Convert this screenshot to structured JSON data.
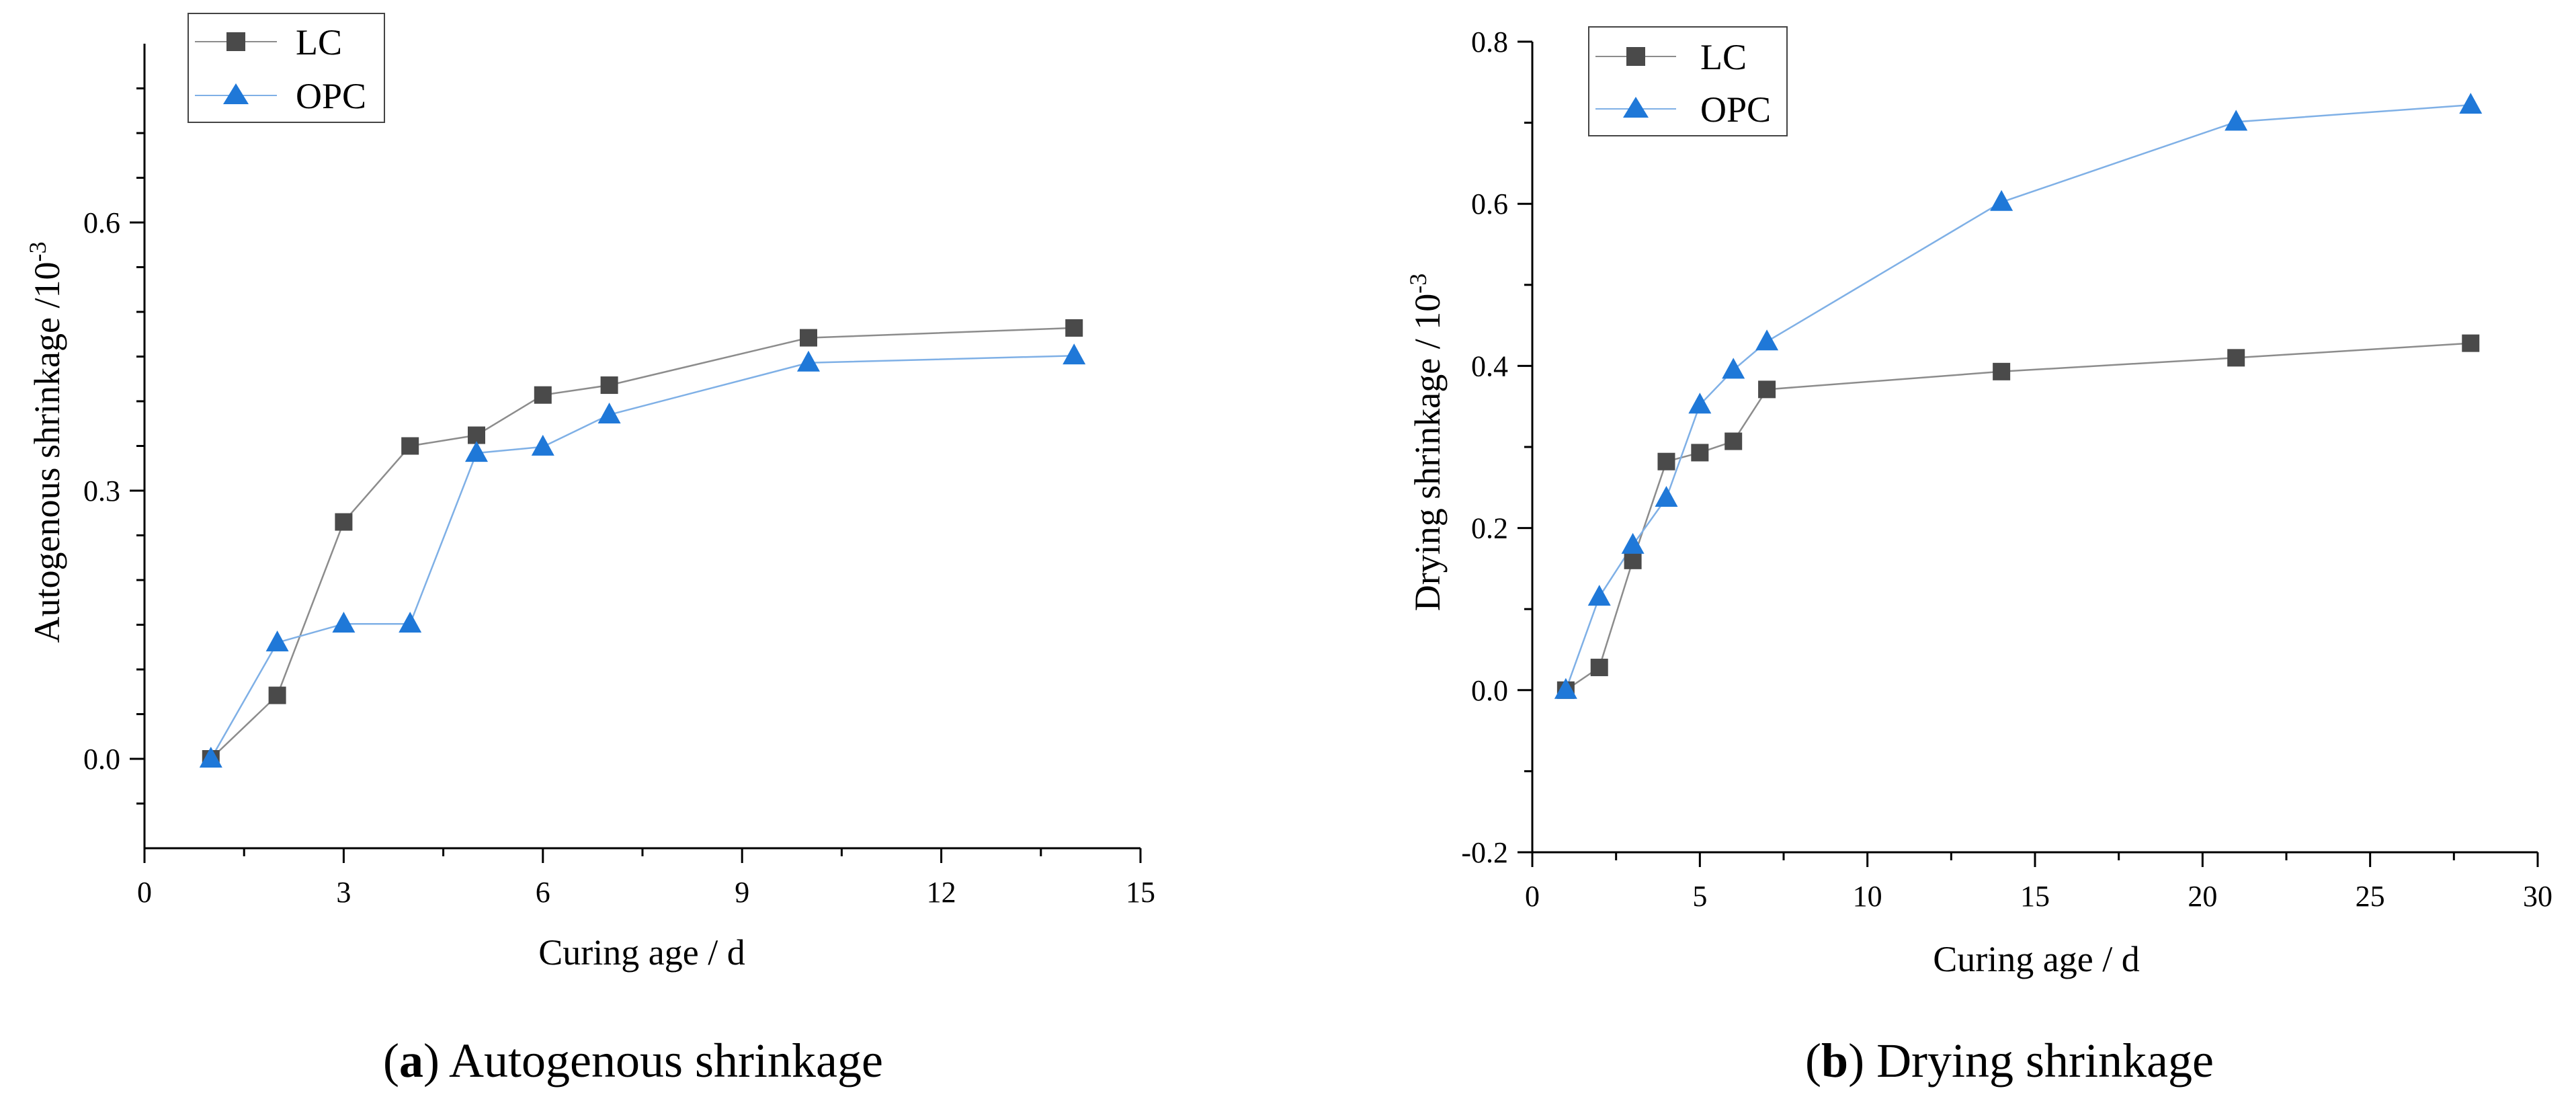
{
  "chart_data": [
    {
      "id": "a",
      "type": "line",
      "caption_letter": "a",
      "caption_text": "Autogenous shrinkage",
      "xlabel": "Curing age / d",
      "ylabel": "Autogenous shrinkage /10",
      "ylabel_exponent": "-3",
      "xlim": [
        0,
        15
      ],
      "ylim": [
        -0.1,
        0.8
      ],
      "xticks": [
        0,
        3,
        6,
        9,
        12,
        15
      ],
      "xtick_labels": [
        "0",
        "3",
        "6",
        "9",
        "12",
        "15"
      ],
      "xminor": [
        1.5,
        4.5,
        7.5,
        10.5,
        13.5
      ],
      "yticks": [
        0,
        0.3,
        0.6
      ],
      "ytick_labels": [
        "0.0",
        "0.3",
        "0.6"
      ],
      "yminor": [
        -0.05,
        0.05,
        0.1,
        0.15,
        0.2,
        0.25,
        0.35,
        0.4,
        0.45,
        0.5,
        0.55,
        0.65,
        0.7,
        0.75
      ],
      "legend_position": "top-left",
      "series": [
        {
          "name": "LC",
          "marker": "square",
          "marker_color": "#4a4a4a",
          "line_color": "#8c8c8c",
          "x": [
            1,
            2,
            3,
            4,
            5,
            6,
            7,
            10,
            14
          ],
          "y": [
            0.0,
            0.071,
            0.265,
            0.35,
            0.362,
            0.407,
            0.418,
            0.471,
            0.482
          ]
        },
        {
          "name": "OPC",
          "marker": "triangle",
          "marker_color": "#1f78d8",
          "line_color": "#7fb0e6",
          "x": [
            1,
            2,
            3,
            4,
            5,
            6,
            7,
            10,
            14
          ],
          "y": [
            0.0,
            0.13,
            0.151,
            0.151,
            0.342,
            0.349,
            0.385,
            0.443,
            0.451
          ]
        }
      ]
    },
    {
      "id": "b",
      "type": "line",
      "caption_letter": "b",
      "caption_text": "Drying shrinkage",
      "xlabel": "Curing age / d",
      "ylabel": "Drying shrinkage / 10",
      "ylabel_exponent": "-3",
      "xlim": [
        0,
        30
      ],
      "ylim": [
        -0.2,
        0.8
      ],
      "xticks": [
        0,
        5,
        10,
        15,
        20,
        25,
        30
      ],
      "xtick_labels": [
        "0",
        "5",
        "10",
        "15",
        "20",
        "25",
        "30"
      ],
      "xminor": [
        2.5,
        7.5,
        12.5,
        17.5,
        22.5,
        27.5
      ],
      "yticks": [
        -0.2,
        0,
        0.2,
        0.4,
        0.6,
        0.8
      ],
      "ytick_labels": [
        "-0.2",
        "0.0",
        "0.2",
        "0.4",
        "0.6",
        "0.8"
      ],
      "yminor": [
        -0.1,
        0.1,
        0.3,
        0.5,
        0.7
      ],
      "legend_position": "top-left",
      "series": [
        {
          "name": "LC",
          "marker": "square",
          "marker_color": "#4a4a4a",
          "line_color": "#8c8c8c",
          "x": [
            1,
            2,
            3,
            4,
            5,
            6,
            7,
            14,
            21,
            28
          ],
          "y": [
            0.0,
            0.028,
            0.16,
            0.282,
            0.293,
            0.307,
            0.371,
            0.393,
            0.41,
            0.428
          ]
        },
        {
          "name": "OPC",
          "marker": "triangle",
          "marker_color": "#1f78d8",
          "line_color": "#7fb0e6",
          "x": [
            1,
            2,
            3,
            4,
            5,
            6,
            7,
            14,
            21,
            28
          ],
          "y": [
            0.0,
            0.115,
            0.179,
            0.237,
            0.352,
            0.395,
            0.43,
            0.602,
            0.701,
            0.722
          ]
        }
      ]
    }
  ]
}
